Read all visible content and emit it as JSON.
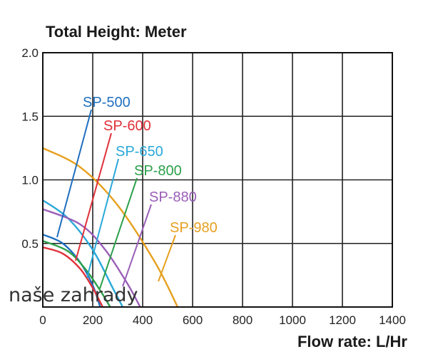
{
  "chart_data": {
    "type": "line",
    "title": "Total Height:  Meter",
    "xlabel": "Flow rate:  L/Hr",
    "ylabel": "",
    "xlim": [
      0,
      1400
    ],
    "ylim": [
      0,
      2.0
    ],
    "x_ticks": [
      "0",
      "200",
      "400",
      "600",
      "800",
      "1000",
      "1200",
      "1400"
    ],
    "y_ticks": [
      "2.0",
      "1.5",
      "1.0",
      "0.5"
    ],
    "grid": true,
    "series": [
      {
        "name": "SP-500",
        "color": "#1f6fbf",
        "x": [
          0,
          80,
          150,
          200,
          230
        ],
        "y": [
          0.57,
          0.5,
          0.35,
          0.17,
          0.0
        ]
      },
      {
        "name": "SP-600",
        "color": "#e0303a",
        "x": [
          0,
          80,
          150,
          200,
          240
        ],
        "y": [
          0.47,
          0.42,
          0.3,
          0.15,
          0.0
        ]
      },
      {
        "name": "SP-650",
        "color": "#2aa8d8",
        "x": [
          0,
          100,
          200,
          280,
          320
        ],
        "y": [
          0.84,
          0.7,
          0.45,
          0.15,
          0.0
        ]
      },
      {
        "name": "SP-800",
        "color": "#2ca04a",
        "x": [
          0,
          100,
          170,
          230,
          270
        ],
        "y": [
          0.52,
          0.44,
          0.3,
          0.13,
          0.0
        ]
      },
      {
        "name": "SP-880",
        "color": "#9a5fb8",
        "x": [
          0,
          150,
          250,
          340,
          390
        ],
        "y": [
          0.77,
          0.65,
          0.45,
          0.18,
          0.0
        ]
      },
      {
        "name": "SP-980",
        "color": "#e6a01e",
        "x": [
          0,
          150,
          300,
          450,
          540
        ],
        "y": [
          1.25,
          1.1,
          0.8,
          0.35,
          0.0
        ]
      }
    ]
  },
  "watermark": "naše zahrady"
}
